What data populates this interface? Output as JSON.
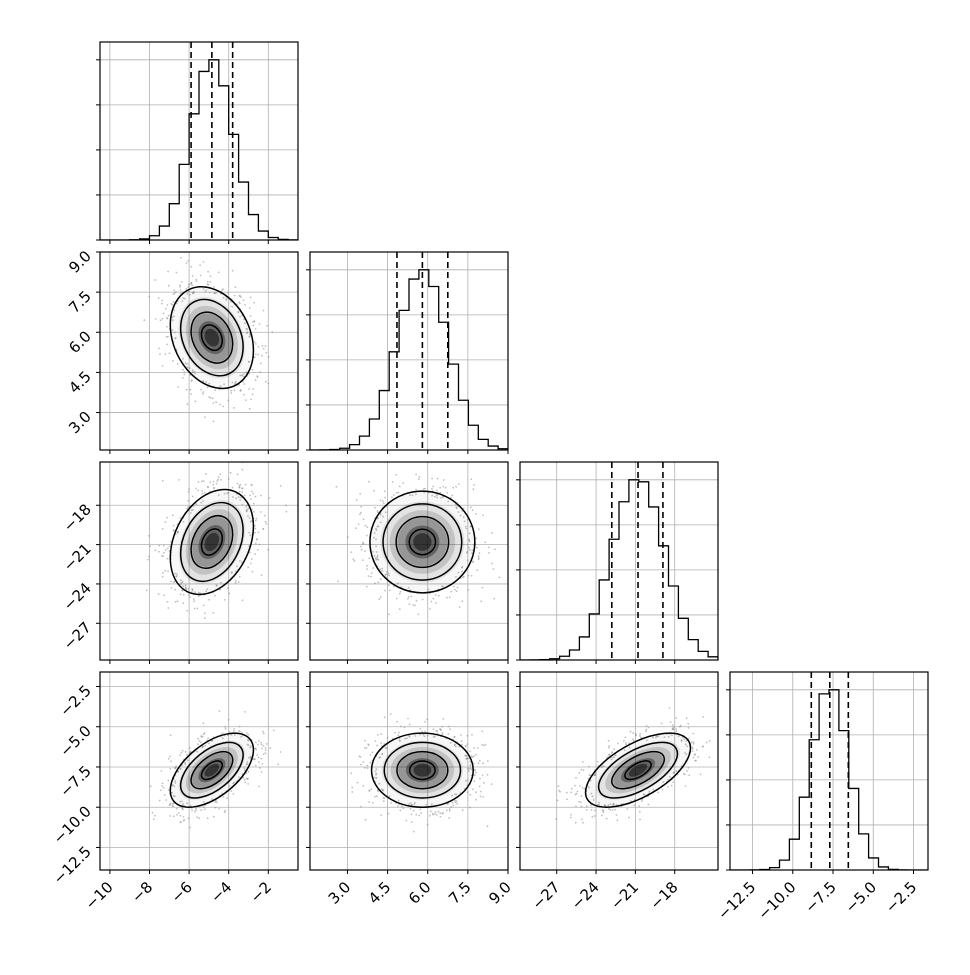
{
  "chart_data": {
    "type": "corner",
    "colors": {
      "ink": "#000000",
      "grid": "#b0b0b0",
      "scatter": "#8c8c8c"
    },
    "grid": true,
    "params": [
      {
        "ticks": [
          -10,
          -8,
          -6,
          -4,
          -2
        ],
        "tick_labels": [
          "−10",
          "−8",
          "−6",
          "−4",
          "−2"
        ],
        "range": [
          -10.5,
          -0.5
        ],
        "mean": -4.85,
        "sd": 1.05,
        "quantiles": [
          -5.9,
          -4.85,
          -3.8
        ]
      },
      {
        "ticks": [
          3.0,
          4.5,
          6.0,
          7.5,
          9.0
        ],
        "tick_labels": [
          "3.0",
          "4.5",
          "6.0",
          "7.5",
          "9.0"
        ],
        "range": [
          1.6,
          9.0
        ],
        "mean": 5.8,
        "sd": 0.95,
        "quantiles": [
          4.85,
          5.8,
          6.75
        ]
      },
      {
        "ticks": [
          -27,
          -24,
          -21,
          -18
        ],
        "tick_labels": [
          "−27",
          "−24",
          "−21",
          "−18"
        ],
        "range": [
          -29.8,
          -14.7
        ],
        "mean": -20.8,
        "sd": 2.0,
        "quantiles": [
          -22.8,
          -20.8,
          -18.9
        ]
      },
      {
        "ticks": [
          -12.5,
          -10.0,
          -7.5,
          -5.0,
          -2.5
        ],
        "tick_labels": [
          "−12.5",
          "−10.0",
          "−7.5",
          "−5.0",
          "−2.5"
        ],
        "range": [
          -13.9,
          -1.6
        ],
        "mean": -7.7,
        "sd": 1.15,
        "quantiles": [
          -8.85,
          -7.7,
          -6.55
        ]
      }
    ],
    "correlations": [
      {
        "i": 1,
        "j": 0,
        "r": -0.25
      },
      {
        "i": 2,
        "j": 0,
        "r": 0.3
      },
      {
        "i": 2,
        "j": 1,
        "r": 0.0
      },
      {
        "i": 3,
        "j": 0,
        "r": 0.55
      },
      {
        "i": 3,
        "j": 1,
        "r": 0.0
      },
      {
        "i": 3,
        "j": 2,
        "r": 0.6
      }
    ],
    "contour_levels_sigma": [
      0.5,
      1.0,
      1.5,
      2.0
    ],
    "histogram_bins": 20,
    "histogram_peak_relative": 0.91,
    "scatter_points": 1200
  }
}
